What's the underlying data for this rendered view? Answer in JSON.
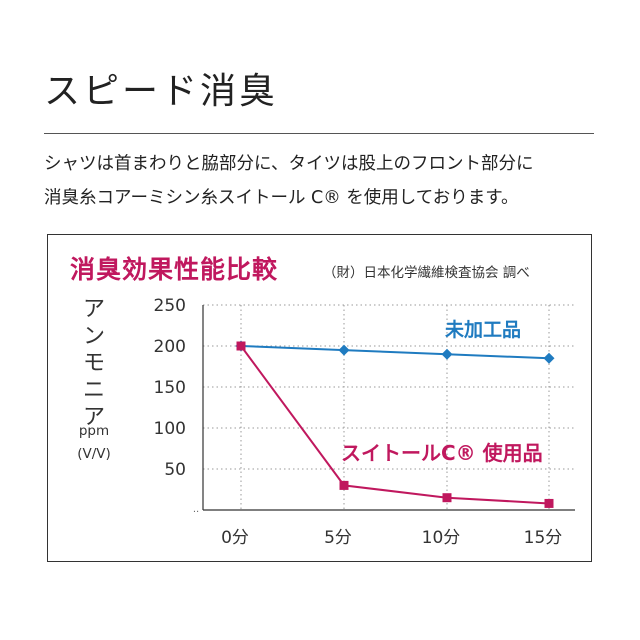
{
  "header": {
    "title": "スピード消臭",
    "description_lines": [
      "シャツは首まわりと脇部分に、タイツは股上のフロント部分に",
      "消臭糸コアーミシン糸スイトール C® を使用しております。"
    ]
  },
  "chart_data": {
    "type": "line",
    "title": "消臭効果性能比較",
    "source": "（財）日本化学繊維検査協会 調べ",
    "ylabel": "アンモニア",
    "yunit_lines": [
      "ppm",
      "(V/V)"
    ],
    "categories": [
      "0分",
      "5分",
      "10分",
      "15分"
    ],
    "ylim": [
      0,
      250
    ],
    "yticks": [
      "250",
      "200",
      "150",
      "100",
      "50"
    ],
    "grid": true,
    "series": [
      {
        "name": "未加工品",
        "values": [
          200,
          195,
          190,
          185
        ],
        "color": "#1f7bc0",
        "marker": "diamond"
      },
      {
        "name": "スイトールC® 使用品",
        "values": [
          200,
          30,
          15,
          8
        ],
        "color": "#c0185e",
        "marker": "square"
      }
    ]
  }
}
